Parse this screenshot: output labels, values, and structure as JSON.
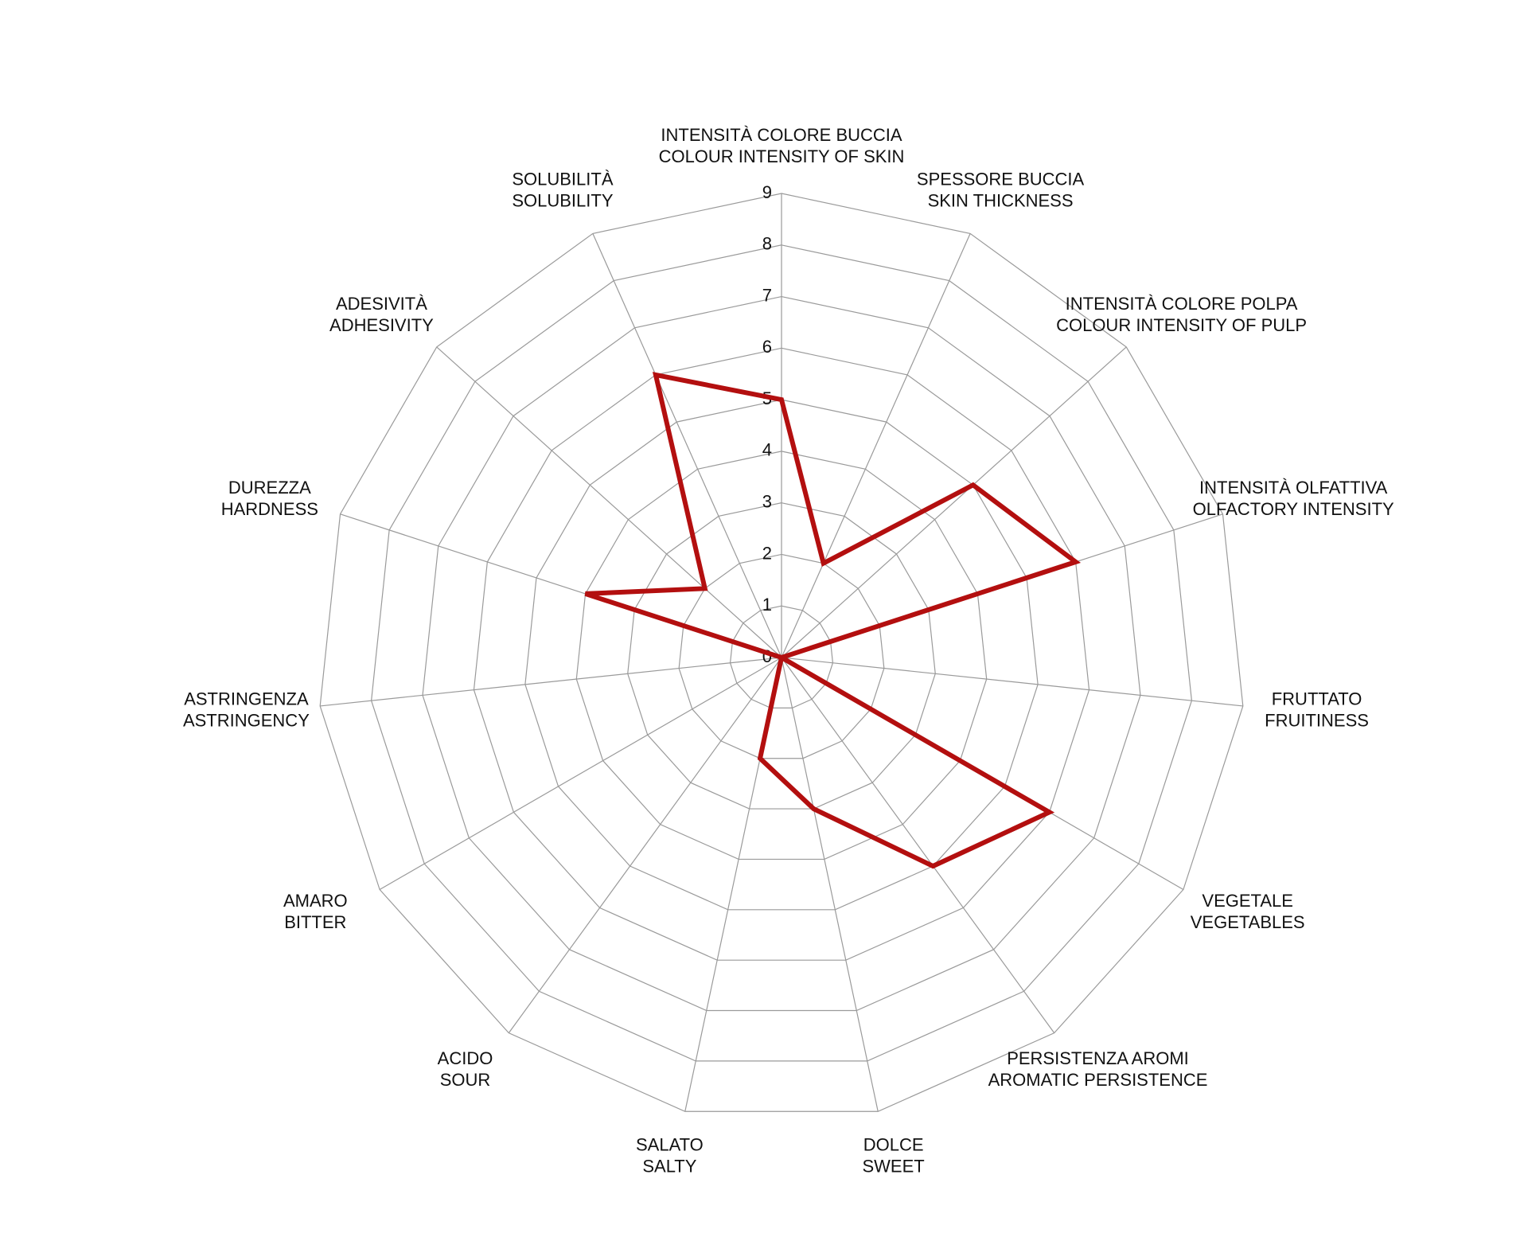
{
  "chart_data": {
    "type": "radar",
    "categories": [
      [
        "INTENSITÀ COLORE BUCCIA",
        "COLOUR INTENSITY OF SKIN"
      ],
      [
        "SPESSORE BUCCIA",
        "SKIN THICKNESS"
      ],
      [
        "INTENSITÀ COLORE POLPA",
        "COLOUR INTENSITY OF PULP"
      ],
      [
        "INTENSITÀ OLFATTIVA",
        "OLFACTORY INTENSITY"
      ],
      [
        "FRUTTATO",
        "FRUITINESS"
      ],
      [
        "VEGETALE",
        "VEGETABLES"
      ],
      [
        "PERSISTENZA AROMI",
        "AROMATIC PERSISTENCE"
      ],
      [
        "DOLCE",
        "SWEET"
      ],
      [
        "SALATO",
        "SALTY"
      ],
      [
        "ACIDO",
        "SOUR"
      ],
      [
        "AMARO",
        "BITTER"
      ],
      [
        "ASTRINGENZA",
        "ASTRINGENCY"
      ],
      [
        "DUREZZA",
        "HARDNESS"
      ],
      [
        "ADESIVITÀ",
        "ADHESIVITY"
      ],
      [
        "SOLUBILITÀ",
        "SOLUBILITY"
      ]
    ],
    "values": [
      5,
      2,
      5,
      6,
      0,
      6,
      5,
      3,
      2,
      0,
      0,
      0,
      4,
      2,
      6
    ],
    "color": "#b30f0f",
    "ylim": [
      0,
      9
    ],
    "yticks": [
      0,
      1,
      2,
      3,
      4,
      5,
      6,
      7,
      8,
      9
    ],
    "grid": true
  }
}
